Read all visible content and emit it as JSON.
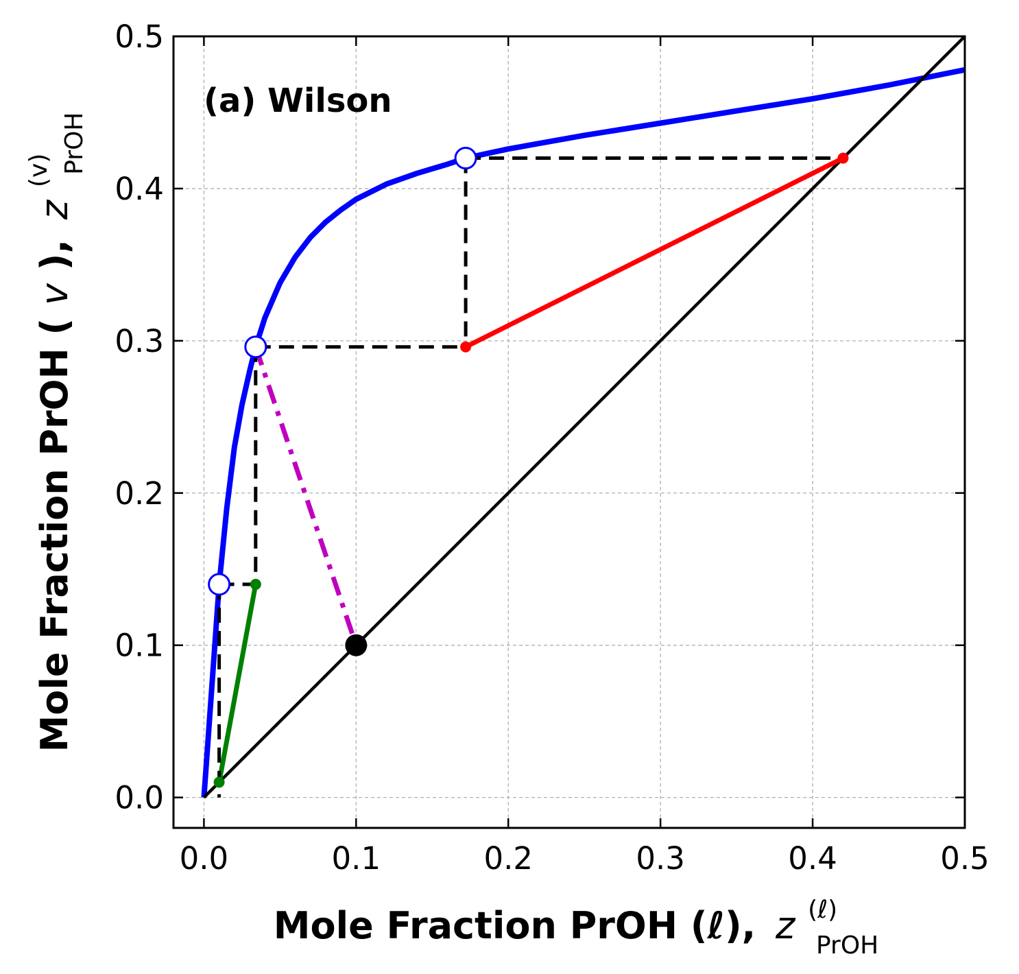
{
  "chart_data": {
    "type": "line",
    "title": "",
    "panel_label": "(a) Wilson",
    "xlabel": {
      "main": "Mole Fraction PrOH (ℓ),",
      "var": "z",
      "sup": "(ℓ)",
      "sub": "PrOH"
    },
    "ylabel": {
      "main": "Mole Fraction PrOH (",
      "phase": "v",
      "close": "),",
      "var": "z",
      "sup": "(v)",
      "sub": "PrOH"
    },
    "xlim": [
      -0.02,
      0.5
    ],
    "ylim": [
      -0.02,
      0.5
    ],
    "xticks": [
      0.0,
      0.1,
      0.2,
      0.3,
      0.4,
      0.5
    ],
    "yticks": [
      0.0,
      0.1,
      0.2,
      0.3,
      0.4,
      0.5
    ],
    "xtick_labels": [
      "0.0",
      "0.1",
      "0.2",
      "0.3",
      "0.4",
      "0.5"
    ],
    "ytick_labels": [
      "0.0",
      "0.1",
      "0.2",
      "0.3",
      "0.4",
      "0.5"
    ],
    "grid": true,
    "colors": {
      "equilibrium": "#0000ff",
      "diagonal": "#000000",
      "red_tie": "#ff0000",
      "green_tie": "#008000",
      "magenta_tie": "#bf00bf",
      "construction": "#000000",
      "grid": "#b0b0b0"
    },
    "series": [
      {
        "name": "equilibrium curve",
        "color": "#0000ff",
        "style": "solid",
        "x": [
          0.0,
          0.005,
          0.01,
          0.015,
          0.02,
          0.025,
          0.03,
          0.034,
          0.04,
          0.05,
          0.06,
          0.07,
          0.08,
          0.09,
          0.1,
          0.12,
          0.14,
          0.16,
          0.172,
          0.2,
          0.25,
          0.3,
          0.35,
          0.4,
          0.45,
          0.5
        ],
        "y": [
          0.0,
          0.07,
          0.14,
          0.19,
          0.23,
          0.258,
          0.28,
          0.296,
          0.315,
          0.338,
          0.355,
          0.368,
          0.378,
          0.386,
          0.393,
          0.403,
          0.41,
          0.416,
          0.42,
          0.426,
          0.435,
          0.443,
          0.451,
          0.459,
          0.468,
          0.478
        ]
      },
      {
        "name": "diagonal y = x",
        "color": "#000000",
        "style": "solid",
        "x": [
          0.0,
          0.5
        ],
        "y": [
          0.0,
          0.5
        ]
      },
      {
        "name": "red tie line",
        "color": "#ff0000",
        "style": "solid",
        "x": [
          0.172,
          0.42
        ],
        "y": [
          0.296,
          0.42
        ]
      },
      {
        "name": "green tie line",
        "color": "#008000",
        "style": "solid",
        "x": [
          0.01,
          0.034
        ],
        "y": [
          0.01,
          0.14
        ]
      },
      {
        "name": "magenta tie line",
        "color": "#bf00bf",
        "style": "dashdot",
        "x": [
          0.034,
          0.1
        ],
        "y": [
          0.296,
          0.1
        ]
      },
      {
        "name": "construction upper horizontal",
        "color": "#000000",
        "style": "dashed",
        "x": [
          0.172,
          0.42
        ],
        "y": [
          0.42,
          0.42
        ]
      },
      {
        "name": "construction upper vertical",
        "color": "#000000",
        "style": "dashed",
        "x": [
          0.172,
          0.172
        ],
        "y": [
          0.42,
          0.296
        ]
      },
      {
        "name": "construction middle horizontal",
        "color": "#000000",
        "style": "dashed",
        "x": [
          0.034,
          0.172
        ],
        "y": [
          0.296,
          0.296
        ]
      },
      {
        "name": "construction middle vertical",
        "color": "#000000",
        "style": "dashed",
        "x": [
          0.034,
          0.034
        ],
        "y": [
          0.296,
          0.14
        ]
      },
      {
        "name": "construction lower horizontal",
        "color": "#000000",
        "style": "dashed",
        "x": [
          0.01,
          0.034
        ],
        "y": [
          0.14,
          0.14
        ]
      },
      {
        "name": "construction lower vertical",
        "color": "#000000",
        "style": "dashed",
        "x": [
          0.01,
          0.01
        ],
        "y": [
          0.14,
          0.0
        ]
      }
    ],
    "markers": [
      {
        "name": "red-endpoint",
        "x": 0.42,
        "y": 0.42,
        "color": "#ff0000",
        "kind": "small"
      },
      {
        "name": "red-endpoint",
        "x": 0.172,
        "y": 0.296,
        "color": "#ff0000",
        "kind": "small"
      },
      {
        "name": "green-endpoint",
        "x": 0.034,
        "y": 0.14,
        "color": "#008000",
        "kind": "small"
      },
      {
        "name": "green-endpoint",
        "x": 0.01,
        "y": 0.01,
        "color": "#008000",
        "kind": "small"
      },
      {
        "name": "feed-point",
        "x": 0.1,
        "y": 0.1,
        "color": "#000000",
        "kind": "feed"
      },
      {
        "name": "vapor-point-open",
        "x": 0.172,
        "y": 0.42,
        "color": "#0000ff",
        "kind": "open"
      },
      {
        "name": "vapor-point-open",
        "x": 0.034,
        "y": 0.296,
        "color": "#0000ff",
        "kind": "open"
      },
      {
        "name": "vapor-point-open",
        "x": 0.01,
        "y": 0.14,
        "color": "#0000ff",
        "kind": "open"
      }
    ]
  }
}
